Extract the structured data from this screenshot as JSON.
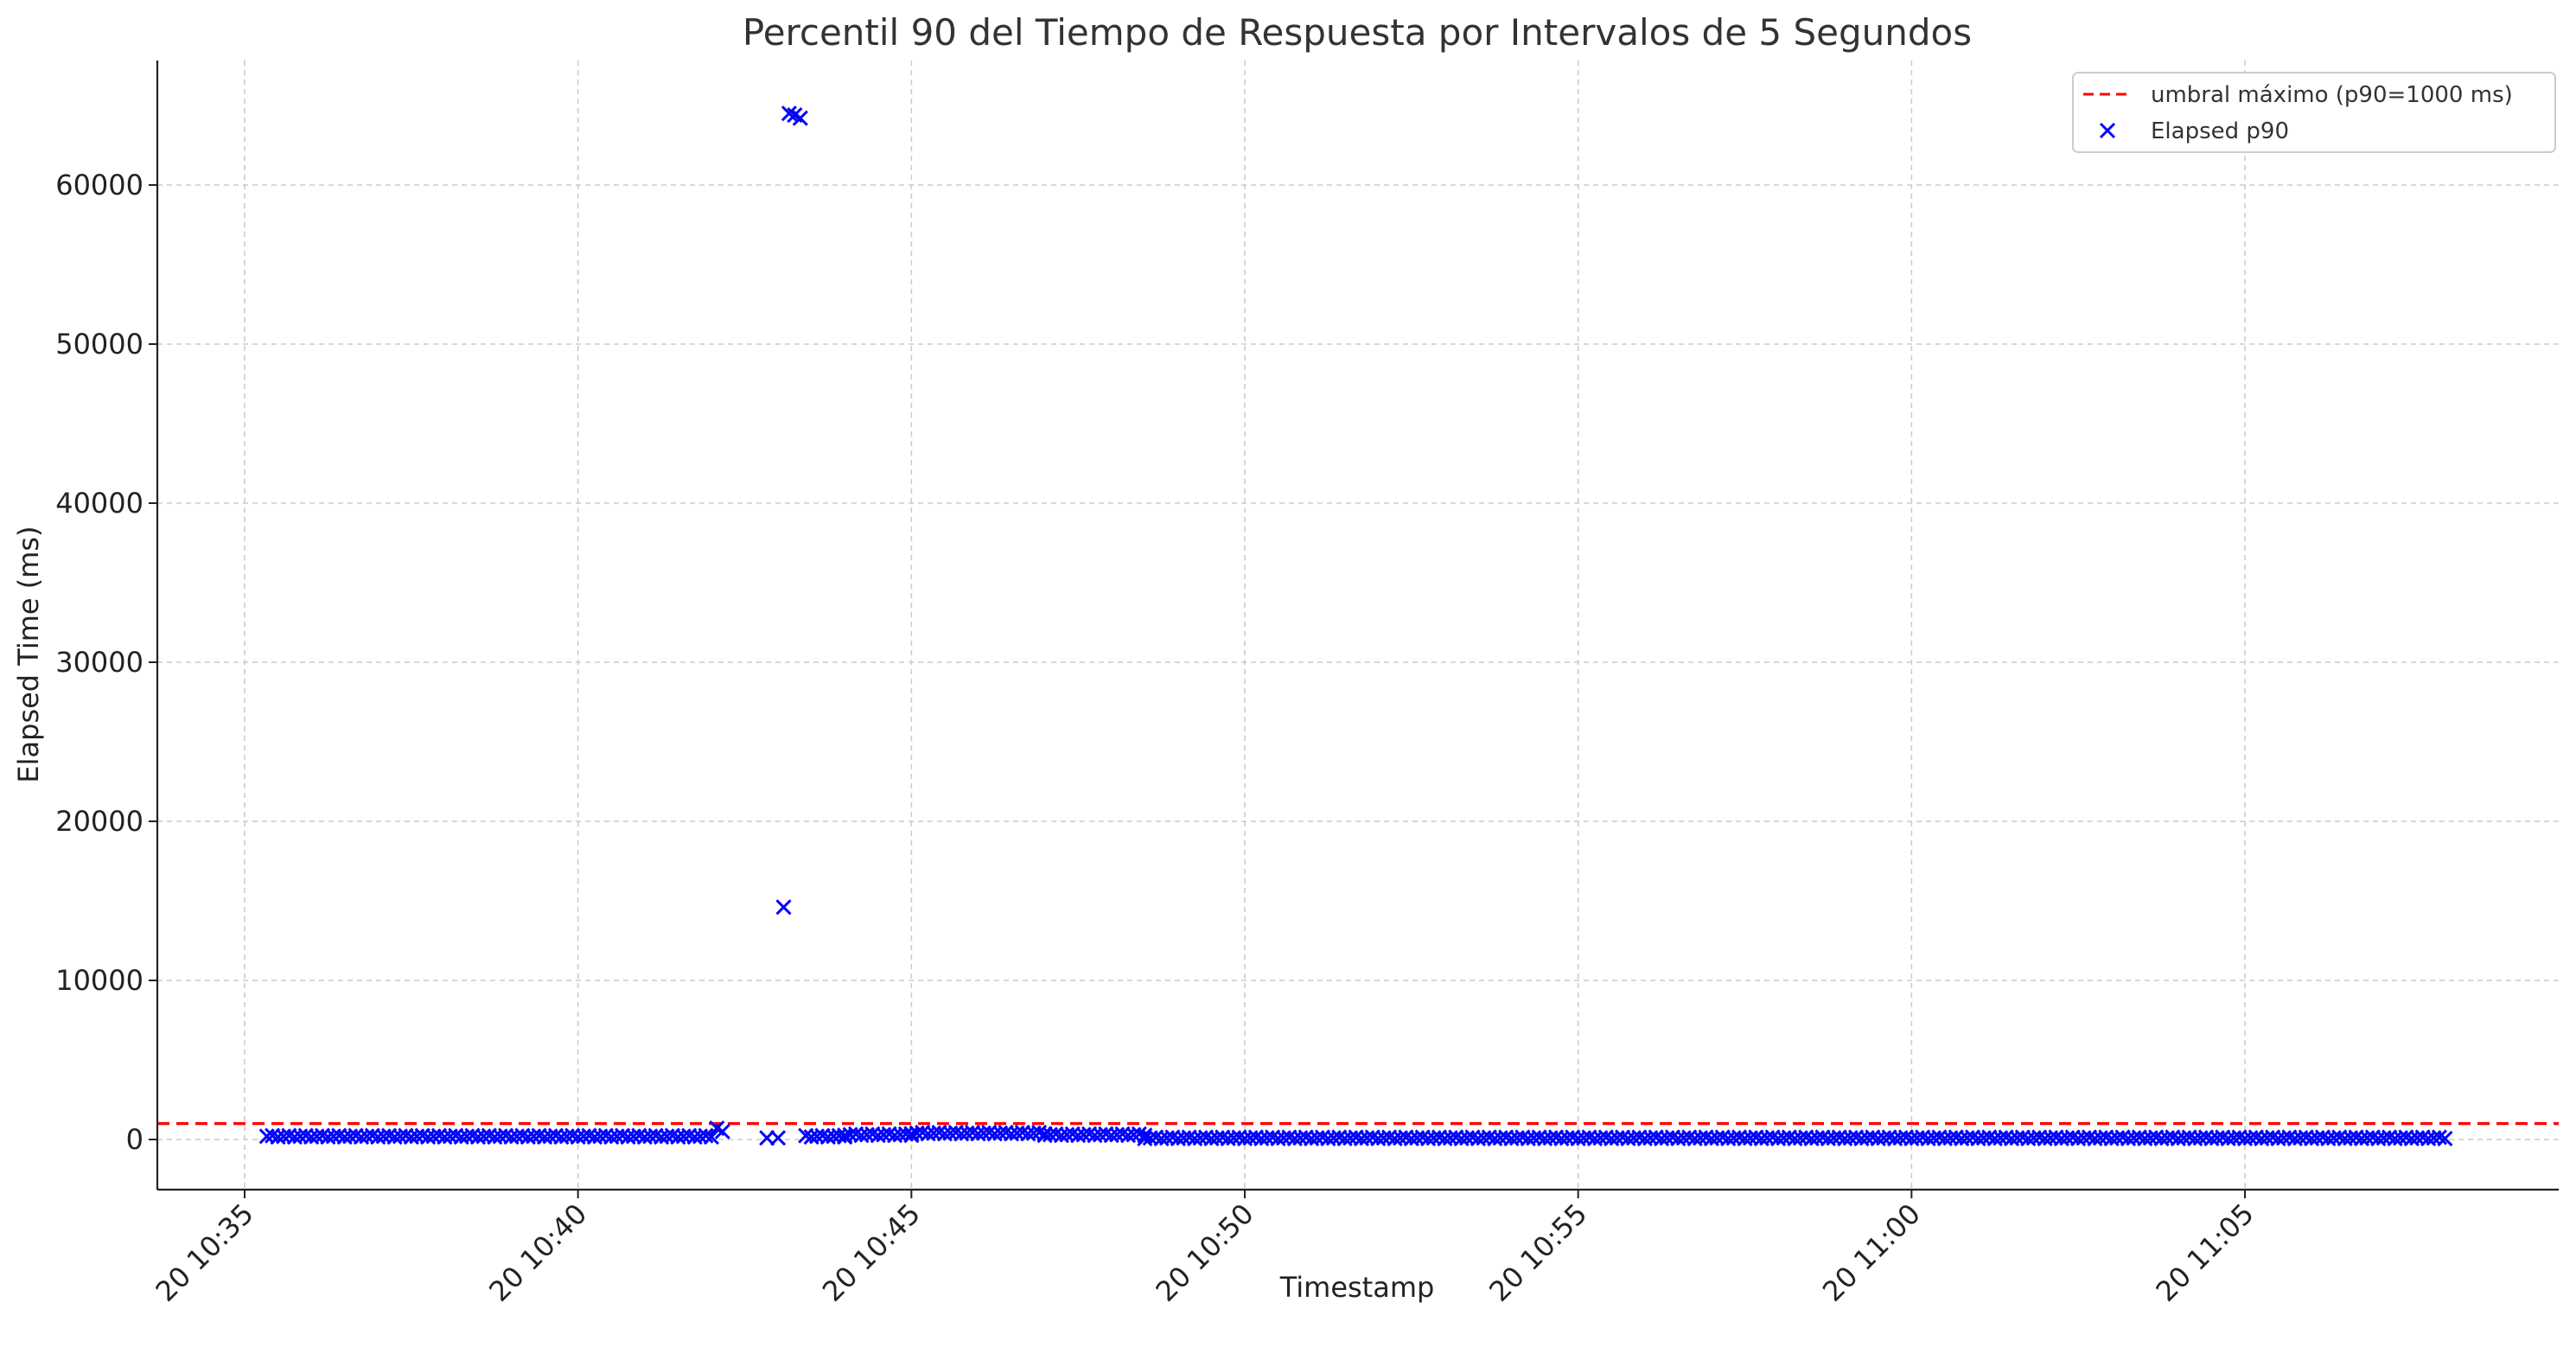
{
  "chart_data": {
    "type": "scatter",
    "title": "Percentil 90 del Tiempo de Respuesta por Intervalos de 5 Segundos",
    "xlabel": "Timestamp",
    "ylabel": "Elapsed Time (ms)",
    "x_ticks": [
      "20 10:35",
      "20 10:40",
      "20 10:45",
      "20 10:50",
      "20 10:55",
      "20 11:00",
      "20 11:05"
    ],
    "x_tick_values": [
      0,
      300,
      600,
      900,
      1200,
      1500,
      1800
    ],
    "x_range_minutes": [
      "10:33:00",
      "11:09:00"
    ],
    "y_ticks": [
      0,
      10000,
      20000,
      30000,
      40000,
      50000,
      60000
    ],
    "ylim": [
      -3200,
      67700
    ],
    "grid": true,
    "legend_position": "top-right",
    "threshold": {
      "name": "umbral máximo (p90=1000 ms)",
      "value": 1000,
      "color": "#ff0000",
      "style": "dashed"
    },
    "series": [
      {
        "name": "Elapsed p90",
        "marker": "x",
        "color": "#0000ff",
        "interval_seconds": 5,
        "note_start": "10:35:20",
        "points_sparse": [
          {
            "x": "10:42:05",
            "y": 700
          },
          {
            "x": "10:42:10",
            "y": 500
          },
          {
            "x": "10:42:50",
            "y": 100
          },
          {
            "x": "10:43:00",
            "y": 100
          },
          {
            "x": "10:43:05",
            "y": 14600
          },
          {
            "x": "10:43:10",
            "y": 64500
          },
          {
            "x": "10:43:15",
            "y": 64400
          },
          {
            "x": "10:43:20",
            "y": 64200
          }
        ],
        "baseline_segments": [
          {
            "from": "10:35:20",
            "to": "10:42:00",
            "y": 200
          },
          {
            "from": "10:43:25",
            "to": "10:44:00",
            "y": 200
          },
          {
            "from": "10:44:00",
            "to": "10:45:00",
            "y": 300
          },
          {
            "from": "10:45:00",
            "to": "10:47:00",
            "y": 400
          },
          {
            "from": "10:47:00",
            "to": "10:48:30",
            "y": 300
          },
          {
            "from": "10:48:30",
            "to": "11:08:00",
            "y": 100
          }
        ]
      }
    ]
  }
}
